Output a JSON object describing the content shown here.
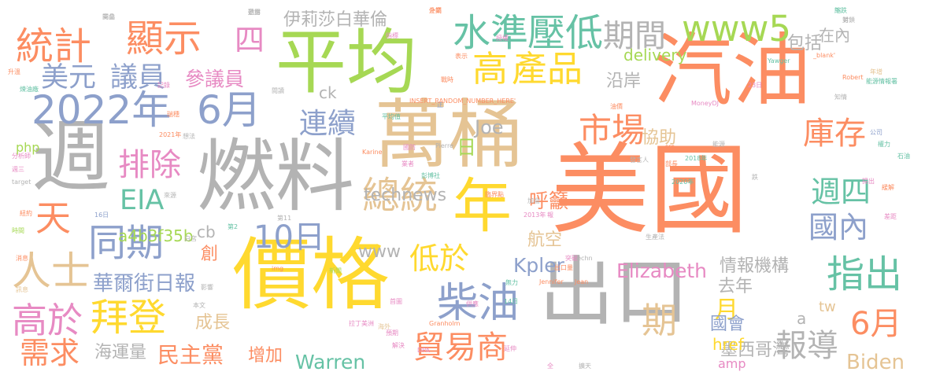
{
  "palette": {
    "orange": "#fc8d62",
    "blue": "#8da0cb",
    "green": "#66c2a5",
    "pink": "#e78ac3",
    "lime": "#a6d854",
    "yellow": "#ffd92f",
    "tan": "#e5c494",
    "gray": "#b3b3b3"
  },
  "words": [
    "美國",
    "汽油",
    "燃料",
    "價格",
    "萬桶",
    "平均",
    "出口",
    "週",
    "年",
    "2022年",
    "6月",
    "柴油",
    "水準",
    "壓低",
    "期間",
    "www5",
    "顯示",
    "統計",
    "高",
    "產品",
    "市場",
    "伊莉莎白華倫",
    "包括",
    "在內",
    "美元",
    "議員",
    "參議員",
    "沿岸",
    "連續",
    "排除",
    "庫存",
    "EIA",
    "天",
    "同期",
    "10日",
    "週四",
    "總統",
    "國內",
    "人士",
    "指出",
    "拜登",
    "高於",
    "需求",
    "貿易商",
    "華爾街日報",
    "低於",
    "Kpler",
    "情報機構",
    "Elizabeth",
    "去年",
    "月",
    "報導",
    "6月",
    "Biden",
    "Warren",
    "海運量",
    "民主黨",
    "增加",
    "墨西哥灣",
    "href",
    "a4b3f35b",
    "delivery",
    "php",
    "technews",
    "Joe",
    "呼籲",
    "航空",
    "協助",
    "創",
    "成長",
    "國會",
    "tw",
    "四",
    "期",
    "日",
    "www",
    "cb",
    "amp",
    "a",
    "ck"
  ],
  "small_words": [
    "商品",
    "透露",
    "外銷",
    "下跌",
    "第",
    "指標",
    "授權",
    "表示",
    "戰時",
    "升溫",
    "煉油廠",
    "記錄",
    "閱讀",
    "正",
    "油價",
    "INSERT_RANDOM_NUMBER_HERE'",
    "平均值",
    "瑞穗",
    "2021年",
    "想法",
    "Pierre",
    "Karine",
    "分析師",
    "週三",
    "target",
    "紐約",
    "16日",
    "時間",
    "來源",
    "第2",
    "第11",
    "img",
    "白宮",
    "本文",
    "消息",
    "訊息",
    "影響",
    "新聞",
    "國防",
    "業者",
    "臨界點",
    "src",
    "發言人",
    "部長",
    "2018年",
    "2020年",
    "能源",
    "公司",
    "權力",
    "石油",
    "能源情報署",
    "年增",
    "首圖",
    "提出",
    "拉丁美洲",
    "海外",
    "Granholm",
    "14日",
    "供應",
    "無力",
    "預期",
    "解決",
    "DPA",
    "延伸",
    "全",
    "擴天",
    "差距",
    "生產法",
    "加侖",
    "報",
    "techn",
    "2013年",
    "出口量",
    "Jean",
    "Jennifer",
    "突破",
    "彭博社",
    "MoneyDJ",
    "23日",
    "跌",
    "緩解",
    "_blank'",
    "Robert",
    "Yawger",
    "知情",
    "開會",
    "動用",
    "企業",
    "縮",
    "封鎖"
  ]
}
